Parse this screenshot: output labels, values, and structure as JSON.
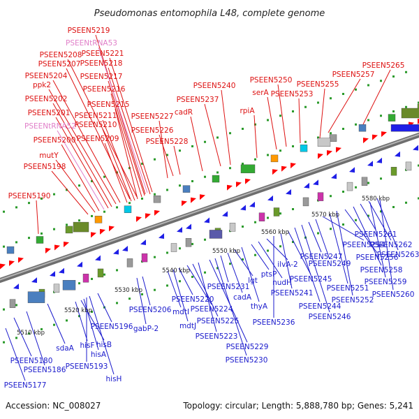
{
  "title": "Pseudomonas entomophila L48, complete genome",
  "footer": {
    "accession": "Accession: NC_008027",
    "summary": "Topology: circular; Length: 5,888,780 bp; Genes: 5,241"
  },
  "colors": {
    "top_label": "#dd1111",
    "rna_label": "#e07ec8",
    "bottom_label": "#1a1acc",
    "backbone": "#8a8a8a",
    "forward_arrow": "#ff0000",
    "reverse_arrow": "#1f1fe6"
  },
  "scale_ticks": [
    "5510 kbp",
    "5520 kbp",
    "5530 kbp",
    "5540 kbp",
    "5550 kbp",
    "5560 kbp",
    "5570 kbp",
    "5580 kbp"
  ],
  "top_labels": [
    {
      "text": "PSEEN5219",
      "kind": "gene"
    },
    {
      "text": "PSEENtRNA53",
      "kind": "rna"
    },
    {
      "text": "PSEEN5221",
      "kind": "gene"
    },
    {
      "text": "PSEEN5208",
      "kind": "gene"
    },
    {
      "text": "PSEEN5218",
      "kind": "gene"
    },
    {
      "text": "PSEEN5207",
      "kind": "gene"
    },
    {
      "text": "PSEEN5204",
      "kind": "gene"
    },
    {
      "text": "PSEEN5217",
      "kind": "gene"
    },
    {
      "text": "ppk2",
      "kind": "gene"
    },
    {
      "text": "PSEEN5216",
      "kind": "gene"
    },
    {
      "text": "PSEEN5202",
      "kind": "gene"
    },
    {
      "text": "PSEEN5215",
      "kind": "gene"
    },
    {
      "text": "PSEEN5201",
      "kind": "gene"
    },
    {
      "text": "PSEEN5211",
      "kind": "gene"
    },
    {
      "text": "PSEEN5210",
      "kind": "gene"
    },
    {
      "text": "PSEENtRNA52",
      "kind": "rna"
    },
    {
      "text": "PSEEN5209",
      "kind": "gene"
    },
    {
      "text": "PSEEN5200",
      "kind": "gene"
    },
    {
      "text": "mutY",
      "kind": "gene"
    },
    {
      "text": "PSEEN5198",
      "kind": "gene"
    },
    {
      "text": "PSEEN5190",
      "kind": "gene"
    },
    {
      "text": "PSEEN5227",
      "kind": "gene"
    },
    {
      "text": "PSEEN5226",
      "kind": "gene"
    },
    {
      "text": "PSEEN5228",
      "kind": "gene"
    },
    {
      "text": "cadR",
      "kind": "gene"
    },
    {
      "text": "PSEEN5240",
      "kind": "gene"
    },
    {
      "text": "PSEEN5237",
      "kind": "gene"
    },
    {
      "text": "rpiA",
      "kind": "gene"
    },
    {
      "text": "PSEEN5250",
      "kind": "gene"
    },
    {
      "text": "serA",
      "kind": "gene"
    },
    {
      "text": "PSEEN5253",
      "kind": "gene"
    },
    {
      "text": "PSEEN5255",
      "kind": "gene"
    },
    {
      "text": "PSEEN5257",
      "kind": "gene"
    },
    {
      "text": "PSEEN5265",
      "kind": "gene"
    }
  ],
  "bottom_labels": [
    "PSEEN5177",
    "PSEEN5180",
    "PSEEN5186",
    "sdaA",
    "hisF",
    "hisB",
    "hisA",
    "PSEEN5193",
    "hisH",
    "PSEEN5196",
    "gabP-2",
    "PSEEN5206",
    "mdtI",
    "mdtJ",
    "PSEEN5220",
    "PSEEN5224",
    "PSEEN5225",
    "PSEEN5223",
    "PSEEN5229",
    "PSEEN5230",
    "PSEEN5231",
    "cadA",
    "lgt",
    "thyA",
    "ptsP",
    "nudH",
    "ilvA-2",
    "PSEEN5236",
    "PSEEN5241",
    "PSEEN5245",
    "PSEEN5244",
    "PSEEN5246",
    "PSEEN5247",
    "PSEEN5249",
    "PSEEN5254",
    "PSEEN5251",
    "PSEEN5252",
    "PSEEN5256",
    "PSEEN5258",
    "PSEEN5261",
    "PSEEN5262",
    "PSEEN5263",
    "PSEEN5259",
    "PSEEN5260"
  ]
}
